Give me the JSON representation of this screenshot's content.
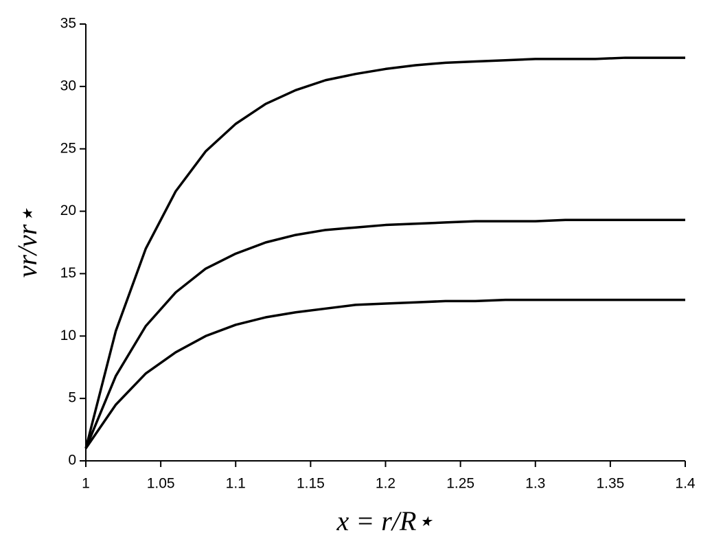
{
  "chart_data": {
    "type": "line",
    "xlabel": "x = r/R⋆",
    "ylabel": "vr/vr⋆",
    "x": [
      1,
      1.02,
      1.04,
      1.06,
      1.08,
      1.1,
      1.12,
      1.14,
      1.16,
      1.18,
      1.2,
      1.22,
      1.24,
      1.26,
      1.28,
      1.3,
      1.32,
      1.34,
      1.36,
      1.38,
      1.4
    ],
    "series": [
      {
        "color": "#000000",
        "values": [
          1,
          10.4,
          17.0,
          21.6,
          24.8,
          27.0,
          28.6,
          29.7,
          30.5,
          31.0,
          31.4,
          31.7,
          31.9,
          32.0,
          32.1,
          32.2,
          32.2,
          32.2,
          32.3,
          32.3,
          32.3
        ]
      },
      {
        "color": "#000000",
        "values": [
          1,
          6.8,
          10.8,
          13.5,
          15.4,
          16.6,
          17.5,
          18.1,
          18.5,
          18.7,
          18.9,
          19.0,
          19.1,
          19.2,
          19.2,
          19.2,
          19.3,
          19.3,
          19.3,
          19.3,
          19.3
        ]
      },
      {
        "color": "#000000",
        "values": [
          1,
          4.5,
          7.0,
          8.7,
          10.0,
          10.9,
          11.5,
          11.9,
          12.2,
          12.5,
          12.6,
          12.7,
          12.8,
          12.8,
          12.9,
          12.9,
          12.9,
          12.9,
          12.9,
          12.9,
          12.9
        ]
      }
    ],
    "xlim": [
      1,
      1.4
    ],
    "xticks": [
      1,
      1.05,
      1.1,
      1.15,
      1.2,
      1.25,
      1.3,
      1.35,
      1.4
    ],
    "ylim": [
      0,
      35
    ],
    "yticks": [
      0,
      5,
      10,
      15,
      20,
      25,
      30,
      35
    ],
    "grid": false
  }
}
